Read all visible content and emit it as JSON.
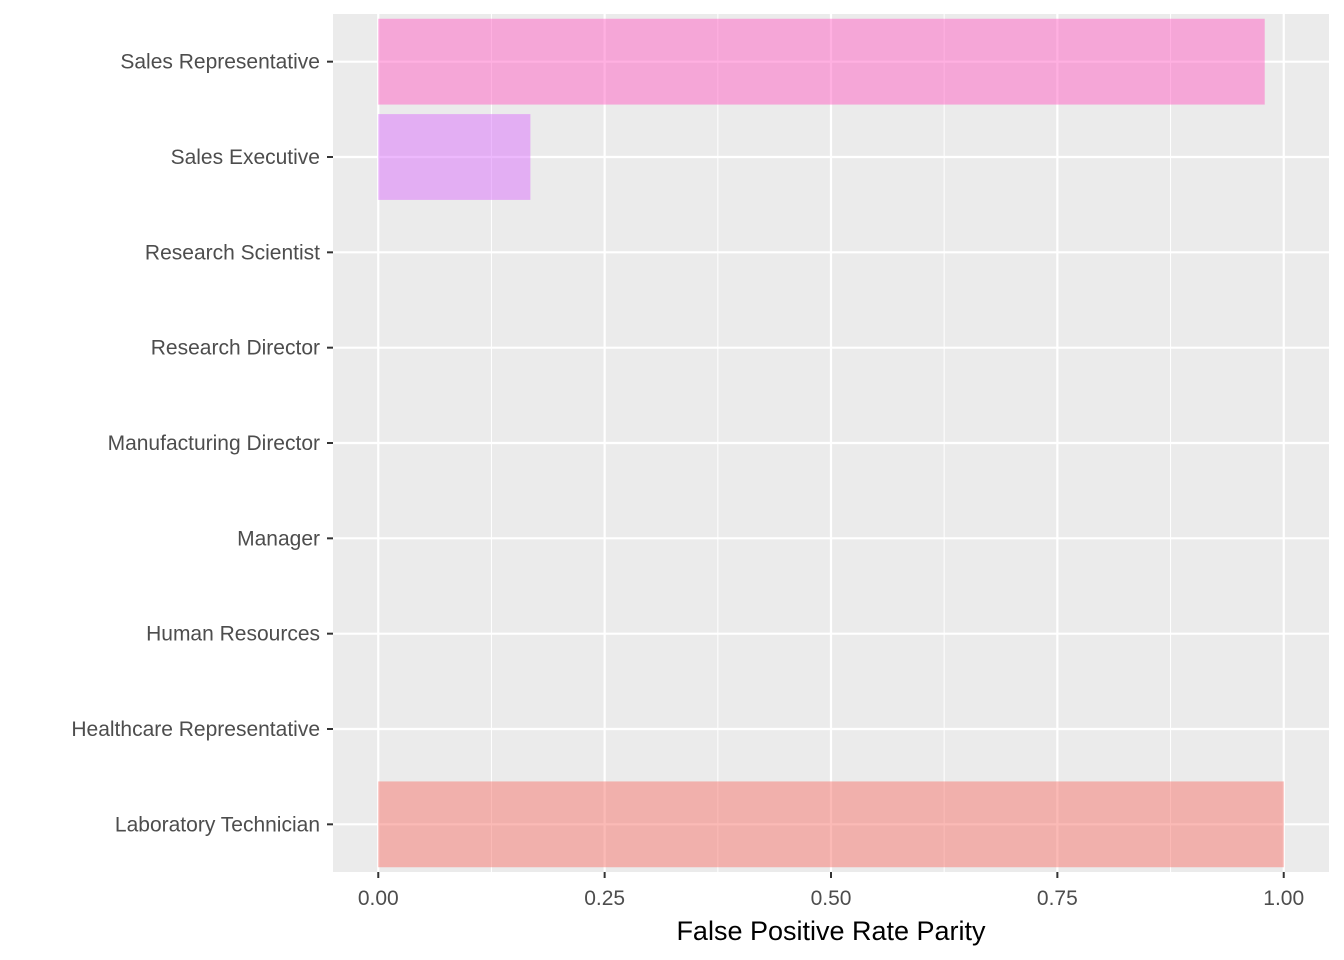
{
  "chart_data": {
    "type": "bar",
    "orientation": "horizontal",
    "title": "",
    "xlabel": "False Positive Rate Parity",
    "ylabel": "",
    "xlim": [
      -0.05,
      1.05
    ],
    "x_ticks": [
      0,
      0.25,
      0.5,
      0.75,
      1.0
    ],
    "x_tick_labels": [
      "0.00",
      "0.25",
      "0.50",
      "0.75",
      "1.00"
    ],
    "categories": [
      "Laboratory Technician",
      "Healthcare Representative",
      "Human Resources",
      "Manager",
      "Manufacturing Director",
      "Research Director",
      "Research Scientist",
      "Sales Executive",
      "Sales Representative"
    ],
    "values": [
      1.0,
      0,
      0,
      0,
      0,
      0,
      0,
      0.168,
      0.979
    ],
    "colors": [
      "#F8766D",
      "#D39200",
      "#93AA00",
      "#00BA38",
      "#00C19F",
      "#00B9E3",
      "#619CFF",
      "#DB72FB",
      "#FF61C3"
    ],
    "bar_opacity": 0.5,
    "panel_background": "#EBEBEB",
    "grid": true,
    "legend": "none"
  }
}
